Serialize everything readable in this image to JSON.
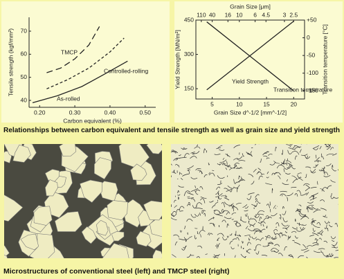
{
  "chart_data": [
    {
      "type": "line",
      "xlabel": "Carbon equivalent (%)",
      "ylabel": "Tensile strength (kgf/mm²)",
      "xlim": [
        0.17,
        0.53
      ],
      "xticks": [
        {
          "value": 0.2,
          "label": "0.20"
        },
        {
          "value": 0.3,
          "label": "0.30"
        },
        {
          "value": 0.4,
          "label": "0.40"
        },
        {
          "value": 0.5,
          "label": "0.50"
        }
      ],
      "ylim": [
        37,
        76
      ],
      "yticks": [
        40,
        50,
        60,
        70
      ],
      "series": [
        {
          "name": "TMCP",
          "color": "#222222",
          "style": "dashed",
          "x": [
            0.22,
            0.26,
            0.3,
            0.34,
            0.37
          ],
          "values": [
            52,
            54,
            58,
            64,
            72
          ]
        },
        {
          "name": "Controlled-rolling",
          "color": "#222222",
          "style": "dotted",
          "x": [
            0.22,
            0.28,
            0.34,
            0.4,
            0.44
          ],
          "values": [
            45,
            49,
            54,
            61,
            67
          ]
        },
        {
          "name": "As-rolled",
          "color": "#222222",
          "style": "solid",
          "x": [
            0.18,
            0.25,
            0.32,
            0.38,
            0.45
          ],
          "values": [
            39,
            42,
            46,
            51,
            57
          ]
        }
      ]
    },
    {
      "type": "line",
      "xlabel": "Grain Size d^-1/2 [mm^-1/2]",
      "x2label": "Grain Size [μm]",
      "ylabel": "Yield Strength [MN/m²]",
      "y2label": "Transition temperature [°C]",
      "xlim": [
        2,
        22
      ],
      "xticks": [
        5,
        10,
        15,
        20
      ],
      "x2ticks": [
        {
          "value": 3.0,
          "label": "110"
        },
        {
          "value": 5,
          "label": "40"
        },
        {
          "value": 7.9,
          "label": "16"
        },
        {
          "value": 10,
          "label": "10"
        },
        {
          "value": 12.9,
          "label": "6"
        },
        {
          "value": 14.9,
          "label": "4.5"
        },
        {
          "value": 18.3,
          "label": "3"
        },
        {
          "value": 20,
          "label": "2.5"
        }
      ],
      "ylim": [
        105,
        450
      ],
      "yticks": [
        150,
        300,
        450
      ],
      "y2lim": [
        -173,
        50
      ],
      "y2ticks": [
        {
          "value": 50,
          "label": "+50"
        },
        0,
        -50,
        -100,
        -150
      ],
      "series": [
        {
          "name": "Yield Strength",
          "color": "#222222",
          "style": "solid",
          "x": [
            4,
            20
          ],
          "values": [
            145,
            445
          ]
        },
        {
          "name": "Transition temperature",
          "color": "#222222",
          "style": "solid",
          "axis": "y2",
          "x": [
            4,
            20
          ],
          "values": [
            45,
            -150
          ]
        }
      ]
    }
  ],
  "captions": [
    "Relationships between carbon equivalent and tensile strength as well as grain size and yield strength",
    "Microstructures of conventional steel (left) and TMCP steel (right)"
  ]
}
